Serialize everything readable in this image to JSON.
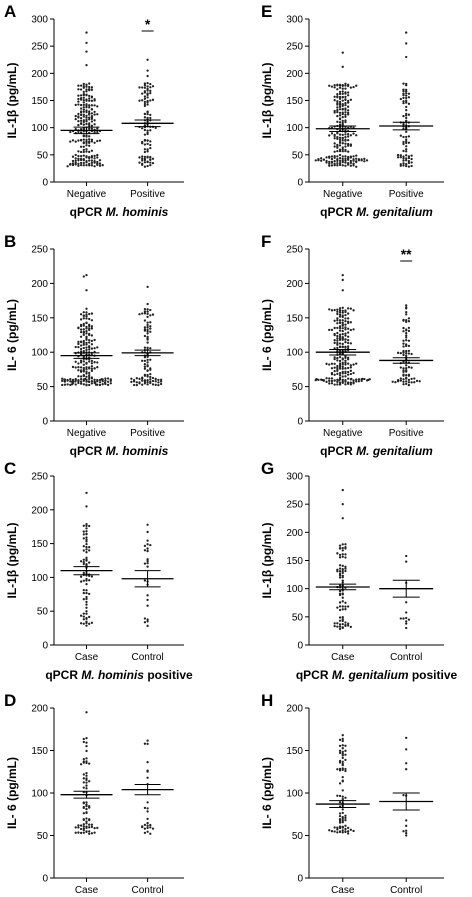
{
  "chart_data": [
    {
      "panel": "A",
      "type": "scatter",
      "ylabel": "IL-1β (pg/mL)",
      "xlabel_prefix": "qPCR ",
      "xlabel_species": "M. hominis",
      "xlabel_suffix": "",
      "categories": [
        "Negative",
        "Positive"
      ],
      "ylim": [
        0,
        300
      ],
      "yticks": [
        0,
        50,
        100,
        150,
        200,
        250,
        300
      ],
      "n": [
        220,
        100
      ],
      "dist": [
        "il1b",
        "il1b"
      ],
      "means": [
        95,
        108
      ],
      "sems": [
        6,
        6
      ],
      "outliers": [
        [
          275,
          256,
          240,
          215
        ],
        [
          225,
          205,
          195
        ]
      ],
      "significance": [
        {
          "label": "*",
          "over": 1
        }
      ]
    },
    {
      "panel": "B",
      "type": "scatter",
      "ylabel": "IL- 6 (pg/mL)",
      "xlabel_prefix": "qPCR ",
      "xlabel_species": "M. hominis",
      "xlabel_suffix": "",
      "categories": [
        "Negative",
        "Positive"
      ],
      "ylim": [
        0,
        250
      ],
      "yticks": [
        0,
        50,
        100,
        150,
        200,
        250
      ],
      "n": [
        210,
        100
      ],
      "dist": [
        "il6",
        "il6"
      ],
      "means": [
        95,
        99
      ],
      "sems": [
        4,
        4
      ],
      "outliers": [
        [
          212,
          210,
          190
        ],
        [
          195,
          170
        ]
      ],
      "significance": []
    },
    {
      "panel": "C",
      "type": "scatter",
      "ylabel": "IL-1β (pg/mL)",
      "xlabel_prefix": "qPCR ",
      "xlabel_species": "M. hominis",
      "xlabel_suffix": " positive",
      "categories": [
        "Case",
        "Control"
      ],
      "ylim": [
        0,
        250
      ],
      "yticks": [
        0,
        50,
        100,
        150,
        200,
        250
      ],
      "n": [
        75,
        25
      ],
      "dist": [
        "il1b",
        "il1b"
      ],
      "means": [
        110,
        98
      ],
      "sems": [
        6,
        12
      ],
      "outliers": [
        [
          225,
          205
        ],
        []
      ],
      "significance": []
    },
    {
      "panel": "D",
      "type": "scatter",
      "ylabel": "IL- 6 (pg/mL)",
      "xlabel_prefix": "qPCR ",
      "xlabel_species": "M. hominis",
      "xlabel_suffix": " positive",
      "categories": [
        "Case",
        "Control"
      ],
      "ylim": [
        0,
        200
      ],
      "yticks": [
        0,
        50,
        100,
        150,
        200
      ],
      "n": [
        75,
        25
      ],
      "dist": [
        "il6",
        "il6"
      ],
      "means": [
        98,
        104
      ],
      "sems": [
        4,
        6
      ],
      "outliers": [
        [
          195,
          160
        ],
        [
          158
        ]
      ],
      "significance": []
    },
    {
      "panel": "E",
      "type": "scatter",
      "ylabel": "IL-1β (pg/mL)",
      "xlabel_prefix": "qPCR ",
      "xlabel_species": "M. genitalium",
      "xlabel_suffix": "",
      "categories": [
        "Negative",
        "Positive"
      ],
      "ylim": [
        0,
        300
      ],
      "yticks": [
        0,
        50,
        100,
        150,
        200,
        250,
        300
      ],
      "n": [
        230,
        80
      ],
      "dist": [
        "il1b",
        "il1b"
      ],
      "means": [
        98,
        103
      ],
      "sems": [
        5,
        7
      ],
      "outliers": [
        [
          238,
          212
        ],
        [
          275,
          255,
          230
        ]
      ],
      "significance": []
    },
    {
      "panel": "F",
      "type": "scatter",
      "ylabel": "IL- 6 (pg/mL)",
      "xlabel_prefix": "qPCR ",
      "xlabel_species": "M. genitalium",
      "xlabel_suffix": "",
      "categories": [
        "Negative",
        "Positive"
      ],
      "ylim": [
        0,
        250
      ],
      "yticks": [
        0,
        50,
        100,
        150,
        200,
        250
      ],
      "n": [
        220,
        80
      ],
      "dist": [
        "il6",
        "il6"
      ],
      "means": [
        100,
        88
      ],
      "sems": [
        4,
        4
      ],
      "outliers": [
        [
          212,
          205,
          190
        ],
        [
          168,
          155
        ]
      ],
      "significance": [
        {
          "label": "**",
          "over": 1
        }
      ]
    },
    {
      "panel": "G",
      "type": "scatter",
      "ylabel": "IL-1β (pg/mL)",
      "xlabel_prefix": "qPCR ",
      "xlabel_species": "M. genitalium",
      "xlabel_suffix": " positive",
      "categories": [
        "Case",
        "Control"
      ],
      "ylim": [
        0,
        300
      ],
      "yticks": [
        0,
        50,
        100,
        150,
        200,
        250,
        300
      ],
      "n": [
        80,
        8
      ],
      "dist": [
        "il1b",
        "il1b"
      ],
      "means": [
        103,
        100
      ],
      "sems": [
        5,
        15
      ],
      "outliers": [
        [
          275,
          250,
          225
        ],
        [
          158,
          148,
          42,
          38
        ]
      ],
      "significance": []
    },
    {
      "panel": "H",
      "type": "scatter",
      "ylabel": "IL- 6 (pg/mL)",
      "xlabel_prefix": "qPCR ",
      "xlabel_species": "M. genitalium",
      "xlabel_suffix": " positive",
      "categories": [
        "Case",
        "Control"
      ],
      "ylim": [
        0,
        200
      ],
      "yticks": [
        0,
        50,
        100,
        150,
        200
      ],
      "n": [
        80,
        8
      ],
      "dist": [
        "il6",
        "il6"
      ],
      "means": [
        87,
        90
      ],
      "sems": [
        4,
        10
      ],
      "outliers": [
        [
          168,
          145
        ],
        [
          135,
          128,
          55,
          50
        ]
      ],
      "significance": []
    }
  ]
}
